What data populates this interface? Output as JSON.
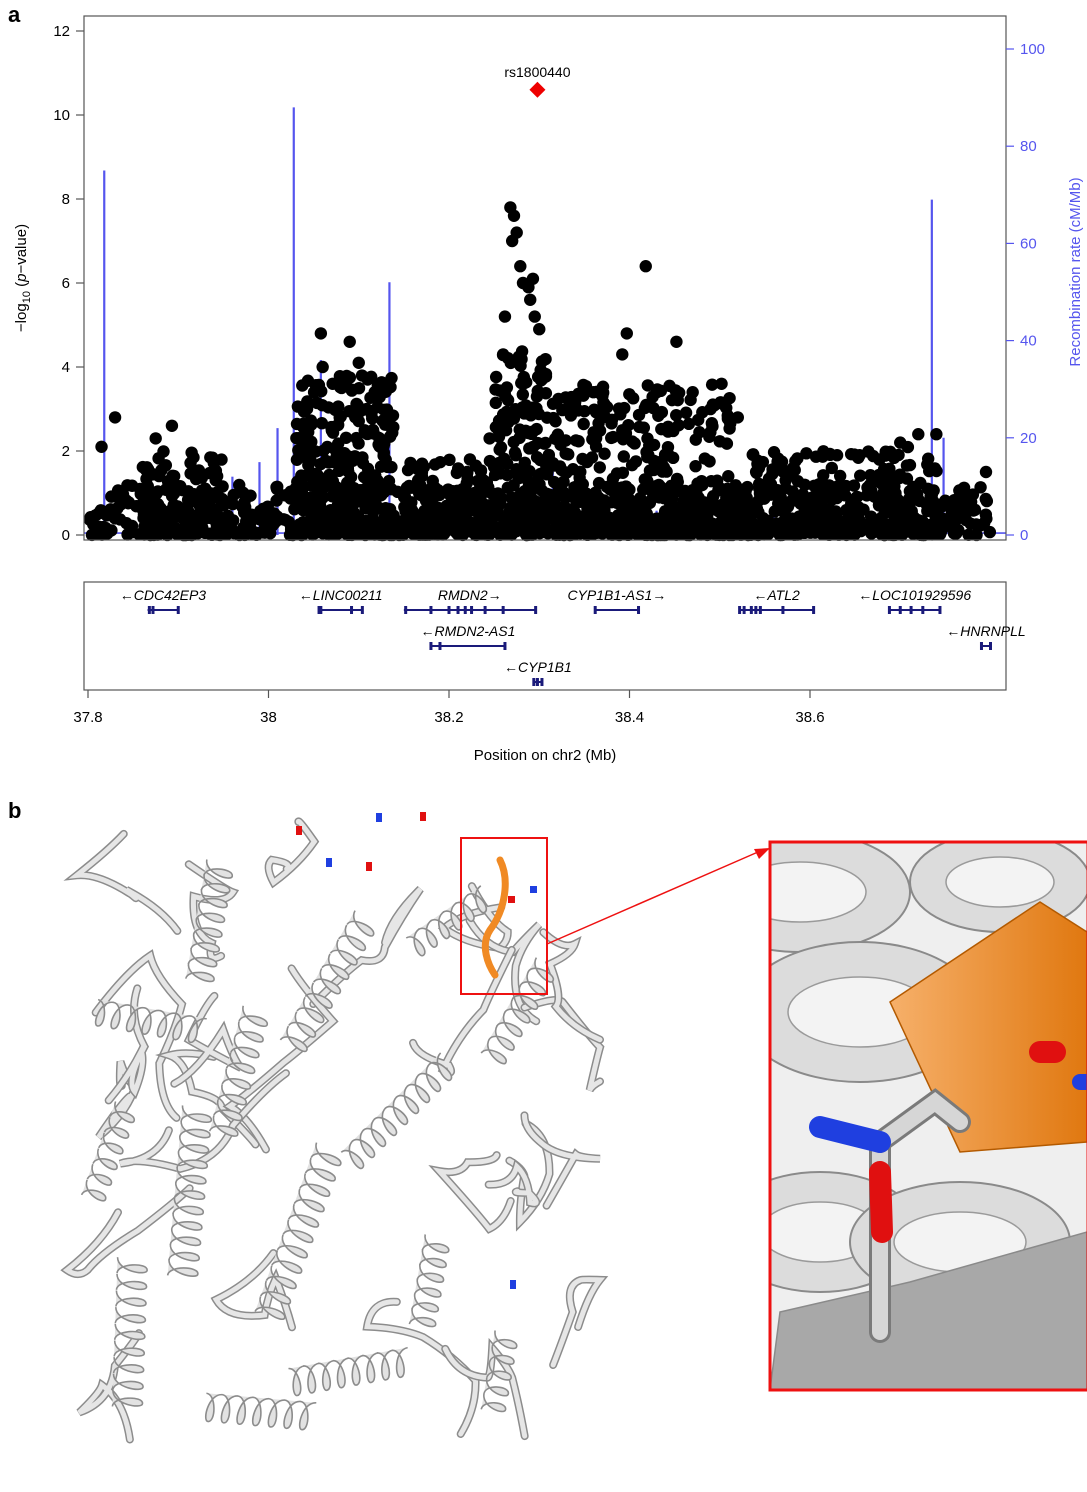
{
  "panels": {
    "a": {
      "label": "a"
    },
    "b": {
      "label": "b"
    }
  },
  "chart_data": {
    "type": "scatter",
    "xlabel": "Position on chr2 (Mb)",
    "ylabel_left": "−log₁₀ (p−value)",
    "ylabel_left_parts": {
      "pre": "−log",
      "sub": "10",
      "mid": " (",
      "italic": "p",
      "post": "−value)"
    },
    "ylabel_right": "Recombination rate (cM/Mb)",
    "xlim": [
      37.8,
      38.8
    ],
    "ylim_left": [
      0,
      12
    ],
    "ylim_right": [
      0,
      100
    ],
    "x_ticks": [
      37.8,
      38.0,
      38.2,
      38.4,
      38.6
    ],
    "x_tick_labels": [
      "37.8",
      "38",
      "38.2",
      "38.4",
      "38.6"
    ],
    "y_ticks_left": [
      0,
      2,
      4,
      6,
      8,
      10,
      12
    ],
    "y_ticks_right": [
      0,
      20,
      40,
      60,
      80,
      100
    ],
    "lead_snp": {
      "name": "rs1800440",
      "x": 38.298,
      "y": 10.6,
      "color": "#ee0000"
    },
    "point_color": "#000000",
    "recomb_color": "#5555ee",
    "peaks": [
      {
        "x": 38.268,
        "y": 7.8
      },
      {
        "x": 38.272,
        "y": 7.6
      },
      {
        "x": 38.275,
        "y": 7.2
      },
      {
        "x": 38.27,
        "y": 7.0
      },
      {
        "x": 38.279,
        "y": 6.4
      },
      {
        "x": 38.282,
        "y": 6.0
      },
      {
        "x": 38.288,
        "y": 5.9
      },
      {
        "x": 38.293,
        "y": 6.1
      },
      {
        "x": 38.29,
        "y": 5.6
      },
      {
        "x": 38.295,
        "y": 5.2
      },
      {
        "x": 38.3,
        "y": 4.9
      },
      {
        "x": 38.262,
        "y": 5.2
      },
      {
        "x": 38.26,
        "y": 4.3
      },
      {
        "x": 38.418,
        "y": 6.4
      },
      {
        "x": 38.397,
        "y": 4.8
      },
      {
        "x": 38.392,
        "y": 4.3
      },
      {
        "x": 38.452,
        "y": 4.6
      },
      {
        "x": 38.502,
        "y": 3.6
      },
      {
        "x": 38.058,
        "y": 4.8
      },
      {
        "x": 38.06,
        "y": 4.0
      },
      {
        "x": 38.09,
        "y": 4.6
      },
      {
        "x": 38.1,
        "y": 4.1
      },
      {
        "x": 37.893,
        "y": 2.6
      },
      {
        "x": 37.83,
        "y": 2.8
      },
      {
        "x": 37.815,
        "y": 2.1
      },
      {
        "x": 37.875,
        "y": 2.3
      },
      {
        "x": 38.7,
        "y": 2.2
      },
      {
        "x": 38.72,
        "y": 2.4
      },
      {
        "x": 38.74,
        "y": 2.4
      },
      {
        "x": 38.795,
        "y": 1.5
      },
      {
        "x": 38.36,
        "y": 3.4
      },
      {
        "x": 38.34,
        "y": 3.2
      },
      {
        "x": 38.47,
        "y": 3.4
      },
      {
        "x": 38.52,
        "y": 2.8
      },
      {
        "x": 38.63,
        "y": 1.9
      },
      {
        "x": 38.655,
        "y": 1.9
      },
      {
        "x": 38.245,
        "y": 2.3
      },
      {
        "x": 38.22,
        "y": 1.5
      },
      {
        "x": 38.17,
        "y": 1.4
      }
    ],
    "clusters": [
      {
        "x0": 37.8,
        "x1": 38.8,
        "ymax": 1.2,
        "n": 900
      },
      {
        "x0": 38.03,
        "x1": 38.14,
        "ymax": 3.8,
        "n": 280
      },
      {
        "x0": 38.25,
        "x1": 38.31,
        "ymax": 4.4,
        "n": 160
      },
      {
        "x0": 38.31,
        "x1": 38.52,
        "ymax": 3.6,
        "n": 320
      },
      {
        "x0": 38.52,
        "x1": 38.7,
        "ymax": 2.0,
        "n": 200
      },
      {
        "x0": 37.86,
        "x1": 37.95,
        "ymax": 2.0,
        "n": 120
      },
      {
        "x0": 38.15,
        "x1": 38.25,
        "ymax": 1.8,
        "n": 150
      },
      {
        "x0": 38.68,
        "x1": 38.75,
        "ymax": 2.3,
        "n": 60
      }
    ],
    "recombination": [
      {
        "x": 37.818,
        "y": 75
      },
      {
        "x": 37.86,
        "y": 6
      },
      {
        "x": 37.895,
        "y": 10
      },
      {
        "x": 37.92,
        "y": 8
      },
      {
        "x": 37.96,
        "y": 12
      },
      {
        "x": 37.99,
        "y": 15
      },
      {
        "x": 38.01,
        "y": 22
      },
      {
        "x": 38.028,
        "y": 88
      },
      {
        "x": 38.058,
        "y": 36
      },
      {
        "x": 38.134,
        "y": 52
      },
      {
        "x": 38.18,
        "y": 8
      },
      {
        "x": 38.315,
        "y": 16
      },
      {
        "x": 38.43,
        "y": 5
      },
      {
        "x": 38.475,
        "y": 8
      },
      {
        "x": 38.56,
        "y": 6
      },
      {
        "x": 38.735,
        "y": 69
      },
      {
        "x": 38.748,
        "y": 20
      }
    ],
    "genes": [
      {
        "name": "CDC42EP3",
        "dir": "left",
        "start": 37.866,
        "end": 37.9,
        "row": 0,
        "exons": [
          37.868,
          37.872,
          37.9
        ]
      },
      {
        "name": "LINC00211",
        "dir": "left",
        "start": 38.056,
        "end": 38.104,
        "row": 0,
        "exons": [
          38.056,
          38.058,
          38.092,
          38.104
        ]
      },
      {
        "name": "RMDN2",
        "dir": "right",
        "start": 38.15,
        "end": 38.296,
        "row": 0,
        "exons": [
          38.152,
          38.18,
          38.2,
          38.21,
          38.218,
          38.225,
          38.24,
          38.26,
          38.296
        ]
      },
      {
        "name": "CYP1B1-AS1",
        "dir": "right",
        "start": 38.362,
        "end": 38.41,
        "row": 0,
        "exons": [
          38.362,
          38.41
        ]
      },
      {
        "name": "ATL2",
        "dir": "left",
        "start": 38.522,
        "end": 38.604,
        "row": 0,
        "exons": [
          38.522,
          38.527,
          38.535,
          38.54,
          38.545,
          38.57,
          38.604
        ]
      },
      {
        "name": "LOC101929596",
        "dir": "left",
        "start": 38.688,
        "end": 38.744,
        "row": 0,
        "exons": [
          38.688,
          38.7,
          38.712,
          38.725,
          38.744
        ]
      },
      {
        "name": "RMDN2-AS1",
        "dir": "left",
        "start": 38.18,
        "end": 38.262,
        "row": 1,
        "exons": [
          38.18,
          38.19,
          38.262
        ]
      },
      {
        "name": "HNRNPLL",
        "dir": "left",
        "start": 38.79,
        "end": 38.8,
        "row": 1,
        "exons": [
          38.79,
          38.8
        ]
      },
      {
        "name": "CYP1B1",
        "dir": "left",
        "start": 38.294,
        "end": 38.303,
        "row": 2,
        "exons": [
          38.294,
          38.298,
          38.303
        ]
      }
    ]
  },
  "structure": {
    "protein_color": "#d4d4d4",
    "highlight_color": "#f08a24",
    "box_color": "#ee1111",
    "atom_blue": "#1f3fe0",
    "atom_red": "#e01010"
  }
}
